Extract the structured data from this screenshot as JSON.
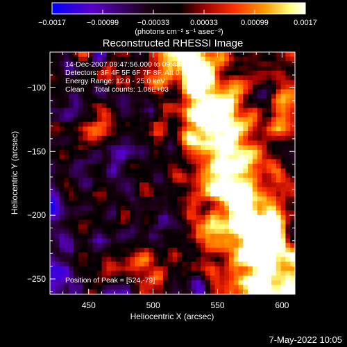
{
  "chart_data": {
    "type": "heatmap",
    "title": "Reconstructed RHESSI Image",
    "xlabel": "Heliocentric X (arcsec)",
    "ylabel": "Heliocentric Y (arcsec)",
    "xlim": [
      420,
      610
    ],
    "ylim": [
      -262,
      -72
    ],
    "x_ticks": [
      450,
      500,
      550,
      600
    ],
    "y_ticks": [
      -100,
      -150,
      -200,
      -250
    ],
    "x_tick_labels": [
      "450",
      "500",
      "550",
      "600"
    ],
    "y_tick_labels": [
      "−100",
      "−150",
      "−200",
      "−250"
    ],
    "colorbar": {
      "range": [
        -0.0017,
        0.0017
      ],
      "tick_labels": [
        "−0.0017",
        "−0.00099",
        "−0.00033",
        "0.00033",
        "0.00099",
        "0.0017"
      ],
      "unit_label": "(photons cm⁻² s⁻¹ asec⁻²)",
      "colors": [
        "#0000ff",
        "#5a00c8",
        "#1a0010",
        "#000000",
        "#9a0000",
        "#ff3000",
        "#ff9a00",
        "#ffff80",
        "#ffffff"
      ]
    },
    "annotations": [
      "14-Dec-2007 09:47:56.000 to 09:48:52.000",
      "Detectors: 3F 4F 5F 6F 7F 8F, Att 0",
      "Energy Range: 12.0 - 25.0 keV",
      "Clean     Total counts: 1.06E+03"
    ],
    "peak_label": "Position of Peak = [524,-79]",
    "peak": [
      524,
      -79
    ]
  },
  "footer": {
    "date": "7-May-2022 10:05"
  }
}
